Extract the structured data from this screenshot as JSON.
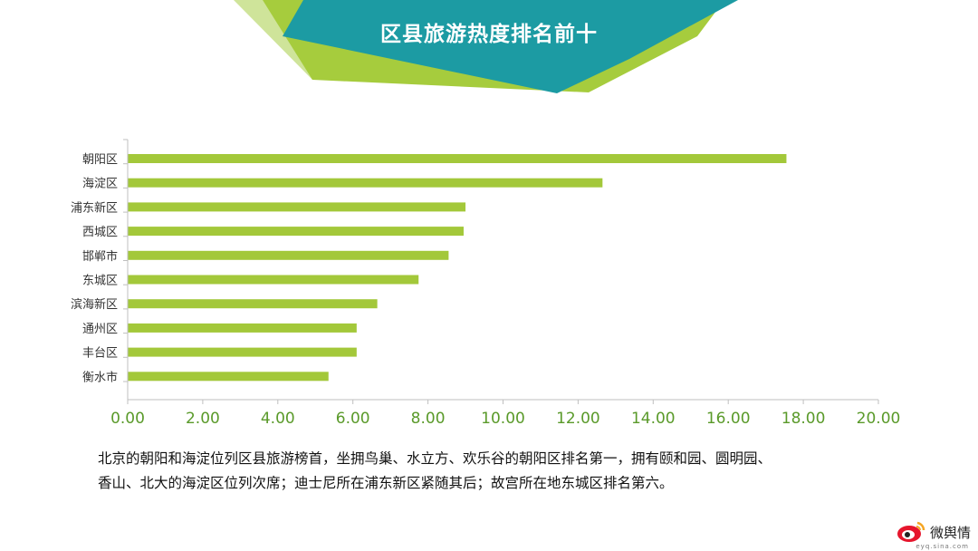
{
  "page": {
    "title": "区县旅游热度排名前十"
  },
  "chart_data": {
    "type": "bar",
    "orientation": "horizontal",
    "title": "",
    "xlabel": "",
    "ylabel": "",
    "categories": [
      "朝阳区",
      "海淀区",
      "浦东新区",
      "西城区",
      "邯郸市",
      "东城区",
      "滨海新区",
      "通州区",
      "丰台区",
      "衡水市"
    ],
    "values": [
      17.55,
      12.65,
      9.0,
      8.95,
      8.55,
      7.75,
      6.65,
      6.1,
      6.1,
      5.35
    ],
    "xlim": [
      0,
      20
    ],
    "xticks": [
      "0.00",
      "2.00",
      "4.00",
      "6.00",
      "8.00",
      "10.00",
      "12.00",
      "14.00",
      "16.00",
      "18.00",
      "20.00"
    ],
    "grid": false,
    "legend": "none",
    "bar_color": "#a3c83a",
    "axis_color": "#bfbfbf",
    "tick_label_color": "#5a9a2a"
  },
  "caption": {
    "line1": "北京的朝阳和海淀位列区县旅游榜首，坐拥鸟巢、水立方、欢乐谷的朝阳区排名第一，拥有颐和园、圆明园、",
    "line2": "香山、北大的海淀区位列次席；迪士尼所在浦东新区紧随其后；故宫所在地东城区排名第六。"
  },
  "watermark": {
    "text": "微舆情",
    "sub": "eyq.sina.com",
    "icon": "weibo-eye-icon"
  },
  "colors": {
    "banner_teal": "#1c9ba3",
    "banner_green": "#a6cc3d",
    "banner_light": "#cfe49a"
  }
}
